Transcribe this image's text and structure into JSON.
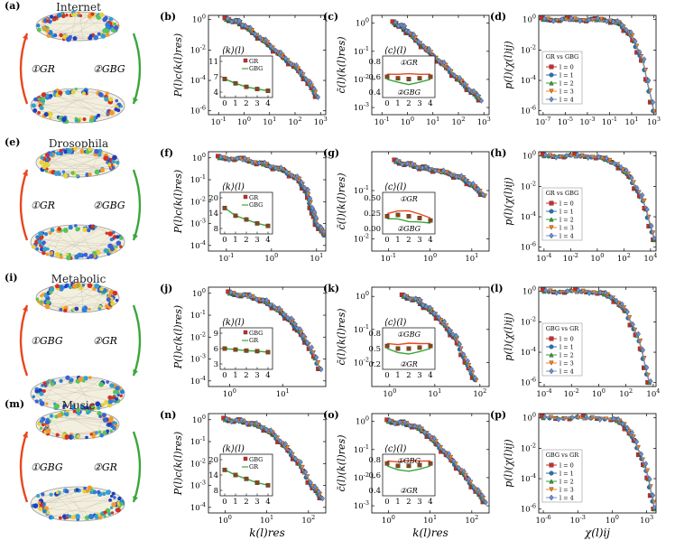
{
  "figure": {
    "rows": [
      {
        "name": "Internet",
        "letters": [
          "(a)",
          "(b)",
          "(c)",
          "(d)"
        ],
        "step1": "①GR",
        "step2": "②GBG",
        "legend_title": "GR vs GBG",
        "inset_k": {
          "title": "⟨k⟩(l)",
          "yticks": [
            "11",
            "7",
            "4"
          ],
          "curve_labels": [
            "GR",
            "GBG"
          ]
        },
        "inset_c": {
          "title": "⟨c⟩(l)",
          "yticks": [
            "0.8",
            "0.6",
            "0.4"
          ],
          "curve_labels": [
            "①GR",
            "②GBG"
          ]
        }
      },
      {
        "name": "Drosophila",
        "letters": [
          "(e)",
          "(f)",
          "(g)",
          "(h)"
        ],
        "step1": "①GR",
        "step2": "②GBG",
        "legend_title": "GR vs GBG",
        "inset_k": {
          "title": "⟨k⟩(l)",
          "yticks": [
            "20",
            "14",
            "8"
          ],
          "curve_labels": [
            "GR",
            "GBG"
          ]
        },
        "inset_c": {
          "title": "⟨c⟩(l)",
          "yticks": [
            "0.50",
            "0.25",
            "0.00"
          ],
          "curve_labels": [
            "①GR",
            "②GBG"
          ]
        }
      },
      {
        "name": "Metabolic",
        "letters": [
          "(i)",
          "(j)",
          "(k)",
          "(l)"
        ],
        "step1": "①GBG",
        "step2": "②GR",
        "legend_title": "GBG vs GR",
        "inset_k": {
          "title": "⟨k⟩(l)",
          "yticks": [
            "9",
            "6",
            "3"
          ],
          "curve_labels": [
            "GBG",
            "GR"
          ]
        },
        "inset_c": {
          "title": "⟨c⟩(l)",
          "yticks": [
            "0.8",
            "0.5",
            "0.2"
          ],
          "curve_labels": [
            "①GBG",
            "②GR"
          ]
        }
      },
      {
        "name": "Music",
        "letters": [
          "(m)",
          "(n)",
          "(o)",
          "(p)"
        ],
        "step1": "①GBG",
        "step2": "②GR",
        "legend_title": "GBG vs GR",
        "inset_k": {
          "title": "⟨k⟩(l)",
          "yticks": [
            "20",
            "14",
            "8"
          ],
          "curve_labels": [
            "GBG",
            "GR"
          ]
        },
        "inset_c": {
          "title": "⟨c⟩(l)",
          "yticks": [
            "0.8",
            "0.6",
            "0.4"
          ],
          "curve_labels": [
            "①GBG",
            "②GR"
          ]
        }
      }
    ],
    "legend_entries": [
      "l = 0",
      "l = 1",
      "l = 2",
      "l = 3",
      "l = 4"
    ],
    "xlabels": {
      "col1": "k(l)res",
      "col2": "k(l)res",
      "col3": "χ(l)ij"
    },
    "ylabels": {
      "col1": "P(l)c(k(l)res)",
      "col2": "c̄(l)(k(l)res)",
      "col3": "p(l)(χ(l)ij)"
    },
    "colors": {
      "l0": "#d62728",
      "l1": "#1f77b4",
      "l2": "#2ca02c",
      "l3": "#ff7f0e",
      "l4": "#6a8fd6",
      "arrow_red": "#e8461e",
      "arrow_green": "#3aa63a"
    }
  },
  "chart_data": [
    {
      "type": "line",
      "panel": "(b)",
      "xlabel": "k(l)res",
      "ylabel": "P(l)c(k(l)res)",
      "xscale": "log",
      "yscale": "log",
      "xticks": [
        "10^-1",
        "10^0",
        "10^1",
        "10^2",
        "10^3"
      ],
      "yticks": [
        "10^0",
        "10^-2",
        "10^-4",
        "10^-6"
      ],
      "x": [
        0.2,
        0.5,
        1,
        3,
        10,
        30,
        100,
        300,
        700
      ],
      "y": [
        1,
        0.8,
        0.4,
        0.1,
        0.02,
        0.004,
        0.0008,
        0.0001,
        1e-05
      ],
      "inset": {
        "x": [
          0,
          1,
          2,
          3,
          4
        ],
        "values": [
          7,
          6,
          5.2,
          4.7,
          4.3
        ]
      }
    },
    {
      "type": "line",
      "panel": "(c)",
      "xlabel": "k(l)res",
      "ylabel": "c̄(l)(k(l)res)",
      "xscale": "log",
      "yscale": "log",
      "xticks": [
        "10^-1",
        "10^0",
        "10^1",
        "10^2",
        "10^3"
      ],
      "yticks": [
        "10^0",
        "10^-1",
        "10^-2",
        "10^-3"
      ],
      "x": [
        0.3,
        0.6,
        1,
        3,
        10,
        30,
        100,
        300,
        700
      ],
      "y": [
        1,
        0.8,
        0.5,
        0.2,
        0.07,
        0.03,
        0.01,
        0.004,
        0.002
      ],
      "inset": {
        "x": [
          0,
          1,
          2,
          3,
          4
        ],
        "values": [
          0.6,
          0.58,
          0.57,
          0.58,
          0.6
        ]
      }
    },
    {
      "type": "line",
      "panel": "(d)",
      "xlabel": "χ(l)ij",
      "ylabel": "p(l)(χ(l)ij)",
      "xscale": "log",
      "yscale": "log",
      "xticks": [
        "10^-7",
        "10^-5",
        "10^-3",
        "10^-1",
        "10^1",
        "10^3"
      ],
      "yticks": [
        "10^0",
        "10^-2",
        "10^-4",
        "10^-6"
      ],
      "x": [
        1e-07,
        1e-05,
        0.001,
        0.1,
        1,
        10,
        100,
        1000
      ],
      "y": [
        1,
        1,
        0.99,
        0.9,
        0.5,
        0.08,
        0.002,
        1e-06
      ]
    },
    {
      "type": "line",
      "panel": "(f)",
      "xlabel": "k(l)res",
      "ylabel": "P(l)c(k(l)res)",
      "xscale": "log",
      "yscale": "log",
      "xticks": [
        "10^-1",
        "10^0",
        "10^1"
      ],
      "yticks": [
        "10^0",
        "10^-1",
        "10^-2",
        "10^-3",
        "10^-4"
      ],
      "x": [
        0.07,
        0.2,
        0.5,
        1,
        2,
        4,
        6,
        8,
        10,
        15
      ],
      "y": [
        1,
        0.9,
        0.6,
        0.4,
        0.25,
        0.1,
        0.03,
        0.004,
        0.001,
        0.0003
      ],
      "inset": {
        "x": [
          0,
          1,
          2,
          3,
          4
        ],
        "values": [
          16,
          13,
          11.5,
          10,
          9
        ]
      }
    },
    {
      "type": "line",
      "panel": "(g)",
      "xlabel": "k(l)res",
      "ylabel": "c̄(l)(k(l)res)",
      "xscale": "log",
      "yscale": "log",
      "xticks": [
        "10^-1",
        "10^0",
        "10^1"
      ],
      "yticks": [
        "10^-1",
        "10^-2"
      ],
      "x": [
        0.15,
        0.3,
        0.6,
        1,
        3,
        6,
        10,
        20
      ],
      "y": [
        0.4,
        0.35,
        0.3,
        0.28,
        0.22,
        0.18,
        0.13,
        0.08
      ],
      "inset": {
        "x": [
          0,
          1,
          2,
          3,
          4
        ],
        "values": [
          0.2,
          0.22,
          0.2,
          0.17,
          0.13
        ]
      }
    },
    {
      "type": "line",
      "panel": "(h)",
      "xlabel": "χ(l)ij",
      "ylabel": "p(l)(χ(l)ij)",
      "xscale": "log",
      "yscale": "log",
      "xticks": [
        "10^-4",
        "10^-2",
        "10^0",
        "10^2",
        "10^4"
      ],
      "yticks": [
        "10^0",
        "10^-2",
        "10^-4",
        "10^-6"
      ],
      "x": [
        0.0001,
        0.01,
        1,
        30,
        300,
        3000,
        20000
      ],
      "y": [
        1,
        1,
        0.9,
        0.3,
        0.04,
        0.001,
        3e-06
      ]
    },
    {
      "type": "line",
      "panel": "(j)",
      "xlabel": "k(l)res",
      "ylabel": "P(l)c(k(l)res)",
      "xscale": "log",
      "yscale": "log",
      "xticks": [
        "10^0",
        "10^1"
      ],
      "yticks": [
        "10^0",
        "10^-1",
        "10^-2",
        "10^-3",
        "10^-4"
      ],
      "x": [
        1,
        2,
        4,
        6,
        10,
        15,
        20,
        30,
        50
      ],
      "y": [
        1,
        0.8,
        0.5,
        0.3,
        0.12,
        0.05,
        0.02,
        0.005,
        0.0004
      ],
      "inset": {
        "x": [
          0,
          1,
          2,
          3,
          4
        ],
        "values": [
          6,
          5.8,
          5.6,
          5.5,
          5.3
        ]
      }
    },
    {
      "type": "line",
      "panel": "(k)",
      "xlabel": "k(l)res",
      "ylabel": "c̄(l)(k(l)res)",
      "xscale": "log",
      "yscale": "log",
      "xticks": [
        "10^0",
        "10^1",
        "10^2"
      ],
      "yticks": [
        "10^0",
        "10^-1",
        "10^-2"
      ],
      "x": [
        2,
        4,
        6,
        10,
        20,
        30,
        50,
        80
      ],
      "y": [
        1,
        0.8,
        0.5,
        0.3,
        0.1,
        0.05,
        0.01,
        0.003
      ],
      "inset": {
        "x": [
          0,
          1,
          2,
          3,
          4
        ],
        "values": [
          0.55,
          0.5,
          0.5,
          0.52,
          0.55
        ]
      }
    },
    {
      "type": "line",
      "panel": "(l)",
      "xlabel": "χ(l)ij",
      "ylabel": "p(l)(χ(l)ij)",
      "xscale": "log",
      "yscale": "log",
      "xticks": [
        "10^-4",
        "10^-2",
        "10^0",
        "10^2",
        "10^4"
      ],
      "yticks": [
        "10^0",
        "10^-2",
        "10^-4",
        "10^-6"
      ],
      "x": [
        0.0001,
        0.01,
        1,
        10,
        100,
        1000,
        5000
      ],
      "y": [
        1,
        1,
        0.9,
        0.4,
        0.05,
        0.0005,
        1e-06
      ]
    },
    {
      "type": "line",
      "panel": "(n)",
      "xlabel": "k(l)res",
      "ylabel": "P(l)c(k(l)res)",
      "xscale": "log",
      "yscale": "log",
      "xticks": [
        "10^0",
        "10^1",
        "10^2"
      ],
      "yticks": [
        "10^0",
        "10^-1",
        "10^-2",
        "10^-3",
        "10^-4"
      ],
      "x": [
        1,
        2,
        4,
        8,
        15,
        30,
        60,
        120,
        200
      ],
      "y": [
        1,
        0.9,
        0.7,
        0.45,
        0.2,
        0.05,
        0.01,
        0.001,
        0.0003
      ],
      "inset": {
        "x": [
          0,
          1,
          2,
          3,
          4
        ],
        "values": [
          16,
          14,
          12.5,
          11,
          10
        ]
      }
    },
    {
      "type": "line",
      "panel": "(o)",
      "xlabel": "k(l)res",
      "ylabel": "c̄(l)(k(l)res)",
      "xscale": "log",
      "yscale": "log",
      "xticks": [
        "10^0",
        "10^1",
        "10^2"
      ],
      "yticks": [
        "10^0",
        "10^-1",
        "10^-2",
        "10^-3"
      ],
      "x": [
        1,
        2,
        4,
        8,
        15,
        30,
        60,
        120,
        200
      ],
      "y": [
        1,
        0.9,
        0.7,
        0.4,
        0.15,
        0.05,
        0.015,
        0.004,
        0.0015
      ],
      "inset": {
        "x": [
          0,
          1,
          2,
          3,
          4
        ],
        "values": [
          0.75,
          0.72,
          0.72,
          0.73,
          0.75
        ]
      }
    },
    {
      "type": "line",
      "panel": "(p)",
      "xlabel": "χ(l)ij",
      "ylabel": "p(l)(χ(l)ij)",
      "xscale": "log",
      "yscale": "log",
      "xticks": [
        "10^-6",
        "10^-3",
        "10^0",
        "10^3"
      ],
      "yticks": [
        "10^0",
        "10^-2",
        "10^-4",
        "10^-6"
      ],
      "x": [
        1e-06,
        0.001,
        1,
        10,
        100,
        1000,
        5000
      ],
      "y": [
        1,
        1,
        0.9,
        0.4,
        0.03,
        0.0003,
        1e-06
      ]
    }
  ]
}
